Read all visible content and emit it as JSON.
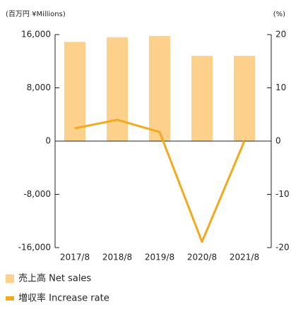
{
  "chart_data": {
    "type": "bar",
    "left_unit": "(百万円 ¥Millions)",
    "right_unit": "(%)",
    "categories": [
      "2017/8",
      "2018/8",
      "2019/8",
      "2020/8",
      "2021/8"
    ],
    "series": [
      {
        "name": "売上高 Net sales",
        "type": "bar",
        "color": "#fdd08c",
        "values": [
          14900,
          15600,
          15800,
          12800,
          12800
        ]
      },
      {
        "name": "増収率 Increase rate",
        "type": "line",
        "axis": "y2",
        "color": "#f5a81c",
        "values": [
          2.4,
          4.0,
          1.7,
          -18.9,
          0.0
        ]
      }
    ],
    "ylim": [
      -16000,
      16000
    ],
    "yticks": [
      {
        "value": -16000,
        "label": "-16,000"
      },
      {
        "value": -8000,
        "label": "-8,000"
      },
      0,
      {
        "value": 8000,
        "label": "8,000"
      },
      {
        "value": 16000,
        "label": "16,000"
      }
    ],
    "y2lim": [
      -20,
      20
    ],
    "y2ticks": [
      -20,
      -10,
      0,
      10,
      20
    ]
  }
}
